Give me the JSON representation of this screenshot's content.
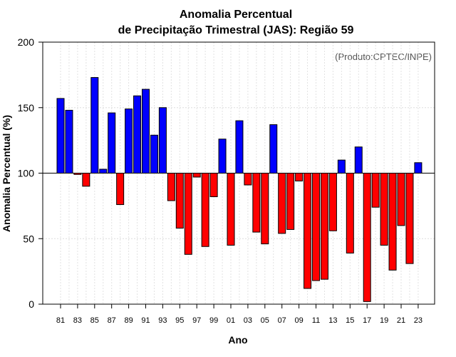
{
  "chart_data": {
    "type": "bar",
    "title_line1": "Anomalia Percentual",
    "title_line2": "de Precipitação Trimestral (JAS): Região 59",
    "credit": "(Produto:CPTEC/INPE)",
    "xlabel": "Ano",
    "ylabel": "Anomalia Percentual (%)",
    "ylim": [
      0,
      200
    ],
    "yticks": [
      "0",
      "50",
      "100",
      "150",
      "200"
    ],
    "baseline": 100,
    "grid": true,
    "colors": {
      "above": "#0000ff",
      "below": "#ff0000",
      "baseline": "#000000"
    },
    "categories": [
      "81",
      "82",
      "83",
      "84",
      "85",
      "86",
      "87",
      "88",
      "89",
      "90",
      "91",
      "92",
      "93",
      "94",
      "95",
      "96",
      "97",
      "98",
      "99",
      "00",
      "01",
      "02",
      "03",
      "04",
      "05",
      "06",
      "07",
      "08",
      "09",
      "10",
      "11",
      "12",
      "13",
      "14",
      "15",
      "16",
      "17",
      "18",
      "19",
      "20",
      "21",
      "22",
      "23"
    ],
    "xtick_labels": [
      "81",
      "83",
      "85",
      "87",
      "89",
      "91",
      "93",
      "95",
      "97",
      "99",
      "01",
      "03",
      "05",
      "07",
      "09",
      "11",
      "13",
      "15",
      "17",
      "19",
      "21",
      "23"
    ],
    "values": [
      157,
      148,
      99,
      90,
      173,
      103,
      146,
      76,
      149,
      159,
      164,
      129,
      150,
      79,
      58,
      38,
      97,
      44,
      82,
      126,
      45,
      140,
      91,
      55,
      46,
      137,
      54,
      57,
      94,
      12,
      18,
      19,
      56,
      110,
      39,
      120,
      2,
      74,
      45,
      26,
      60,
      31,
      108
    ]
  }
}
